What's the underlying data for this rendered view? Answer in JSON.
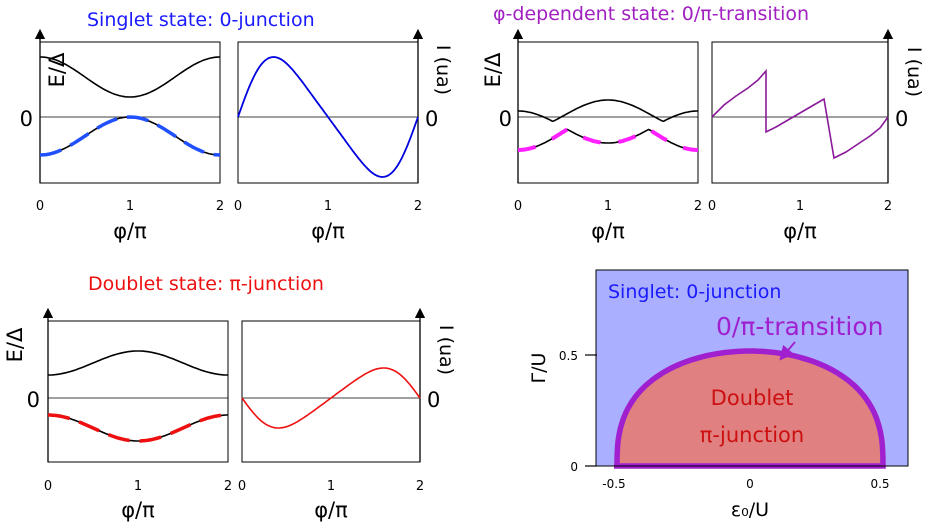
{
  "panels": {
    "singlet": {
      "title": "Singlet state: 0-junction",
      "title_color": "#1a1aff",
      "energy_ylabel": "E/Δ",
      "current_ylabel": "I (ua)",
      "zero_label_left": "0",
      "zero_label_right": "0",
      "xlabel_left": "φ/π",
      "xlabel_right": "φ/π",
      "xticks": [
        "0",
        "1",
        "2"
      ],
      "curve_color": "#0000e0",
      "dash_color": "#2050ff"
    },
    "phi_dependent": {
      "title": "φ-dependent state: 0/π-transition",
      "title_color": "#a020c0",
      "energy_ylabel": "E/Δ",
      "current_ylabel": "I (ua)",
      "zero_label_left": "0",
      "zero_label_right": "0",
      "xlabel_left": "φ/π",
      "xlabel_right": "φ/π",
      "xticks": [
        "0",
        "1",
        "2"
      ],
      "curve_color": "#8a1a9a",
      "dash_color": "#ff20ff"
    },
    "doublet": {
      "title": "Doublet state: π-junction",
      "title_color": "#ee1010",
      "energy_ylabel": "E/Δ",
      "current_ylabel": "I (ua)",
      "zero_label_left": "0",
      "zero_label_right": "0",
      "xlabel_left": "φ/π",
      "xlabel_right": "φ/π",
      "xticks": [
        "0",
        "1",
        "2"
      ],
      "curve_color": "#ee1010",
      "dash_color": "#ee1010"
    },
    "phase_diagram": {
      "singlet_label": "Singlet: 0-junction",
      "transition_label": "0/π-transition",
      "doublet_label_line1": "Doublet",
      "doublet_label_line2": "π-junction",
      "ylabel": "Γ/U",
      "xlabel": "ε₀/U",
      "xticks": [
        "-0.5",
        "0",
        "0.5"
      ],
      "yticks": [
        "0",
        "0.5"
      ],
      "singlet_color": "#aab0ff",
      "doublet_color": "#e08080",
      "boundary_color": "#a020d0",
      "singlet_label_color": "#1a1aff",
      "transition_label_color": "#a020d0",
      "doublet_label_color": "#cc1010"
    }
  }
}
